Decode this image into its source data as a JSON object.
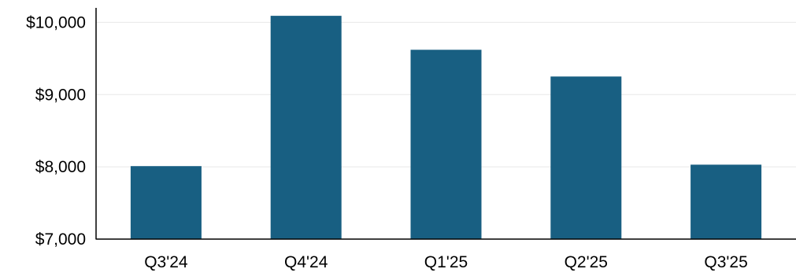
{
  "chart_data": {
    "type": "bar",
    "title": "",
    "xlabel": "",
    "ylabel": "",
    "categories": [
      "Q3'24",
      "Q4'24",
      "Q1'25",
      "Q2'25",
      "Q3'25"
    ],
    "values": [
      8010,
      10090,
      9620,
      9250,
      8030
    ],
    "ylim": [
      7000,
      10200
    ],
    "yticks": [
      7000,
      8000,
      9000,
      10000
    ],
    "ytick_labels": [
      "$7,000",
      "$8,000",
      "$9,000",
      "$10,000"
    ],
    "grid": true,
    "bar_color": "#185f82",
    "grid_color": "#e8e8e8",
    "axis_color": "#000000"
  }
}
